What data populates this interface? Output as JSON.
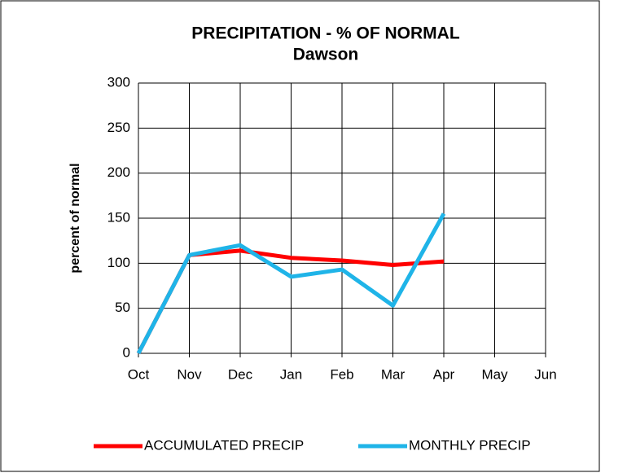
{
  "chart_data": {
    "type": "line",
    "title": "PRECIPITATION - % OF NORMAL",
    "subtitle": "Dawson",
    "y_label": "percent of normal",
    "categories": [
      "Oct",
      "Nov",
      "Dec",
      "Jan",
      "Feb",
      "Mar",
      "Apr",
      "May",
      "Jun"
    ],
    "series": [
      {
        "name": "ACCUMULATED PRECIP",
        "color": "#ff0000",
        "values": [
          0,
          109,
          114,
          106,
          103,
          98,
          102,
          null,
          null
        ]
      },
      {
        "name": "MONTHLY PRECIP",
        "color": "#1fb4e8",
        "values": [
          0,
          109,
          120,
          85,
          93,
          53,
          155,
          null,
          null
        ]
      }
    ],
    "ylim": [
      0,
      300
    ],
    "yticks": [
      0,
      50,
      100,
      150,
      200,
      250,
      300
    ],
    "grid": true,
    "legend": "bottom"
  }
}
